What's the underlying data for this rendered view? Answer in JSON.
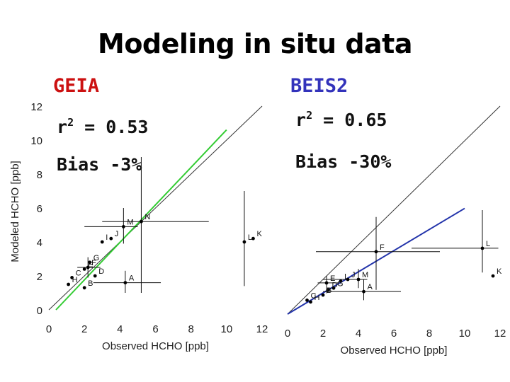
{
  "slide": {
    "title": "Modeling in situ data"
  },
  "chart_data": [
    {
      "type": "scatter",
      "title": "GEIA",
      "title_color": "#cc1111",
      "xlabel": "Observed HCHO [ppb]",
      "ylabel": "Modeled HCHO [ppb]",
      "xlim": [
        0,
        12
      ],
      "ylim": [
        0,
        12
      ],
      "xticks": [
        0,
        2,
        4,
        6,
        8,
        10,
        12
      ],
      "yticks": [
        0,
        2,
        4,
        6,
        8,
        10,
        12
      ],
      "grid": false,
      "r2_prefix": "r",
      "r2_sup": "2",
      "r2_suffix": " = 0.53",
      "bias": "Bias -3%",
      "fit_color": "#33cc33",
      "fit_line": [
        [
          0.4,
          0
        ],
        [
          10,
          10.6
        ]
      ],
      "points": [
        {
          "label": "M",
          "x": 4.2,
          "y": 4.9,
          "xerr": [
            2.0,
            5.0
          ],
          "yerr": [
            3.9,
            6.0
          ]
        },
        {
          "label": "J",
          "x": 3.5,
          "y": 4.2
        },
        {
          "label": "I",
          "x": 3.0,
          "y": 4.0
        },
        {
          "label": "N",
          "x": 5.2,
          "y": 5.2,
          "xerr": [
            3.0,
            9.0
          ],
          "yerr": [
            1.0,
            9.0
          ]
        },
        {
          "label": "L",
          "x": 11.0,
          "y": 4.0,
          "xerr": [
            11.0,
            11.0
          ],
          "yerr": [
            1.4,
            7.0
          ]
        },
        {
          "label": "K",
          "x": 11.5,
          "y": 4.2
        },
        {
          "label": "G",
          "x": 2.3,
          "y": 2.8
        },
        {
          "label": "F",
          "x": 2.2,
          "y": 2.5,
          "xerr": [
            1.6,
            2.9
          ],
          "yerr": [
            1.9,
            3.1
          ]
        },
        {
          "label": "E",
          "x": 2.0,
          "y": 2.4
        },
        {
          "label": "D",
          "x": 2.6,
          "y": 2.0
        },
        {
          "label": "C",
          "x": 1.3,
          "y": 1.9
        },
        {
          "label": "B",
          "x": 2.0,
          "y": 1.3
        },
        {
          "label": "A",
          "x": 4.3,
          "y": 1.6,
          "xerr": [
            2.5,
            6.3
          ],
          "yerr": [
            1.0,
            2.3
          ]
        },
        {
          "label": "H",
          "x": 1.1,
          "y": 1.5
        }
      ]
    },
    {
      "type": "scatter",
      "title": "BEIS2",
      "title_color": "#3333bb",
      "xlabel": "Observed HCHO [ppb]",
      "ylabel": "",
      "xlim": [
        0,
        12
      ],
      "ylim": [
        0,
        12
      ],
      "xticks": [
        0,
        2,
        4,
        6,
        8,
        10,
        12
      ],
      "grid": false,
      "r2_prefix": "r",
      "r2_sup": "2",
      "r2_suffix": " = 0.65",
      "bias": "Bias -30%",
      "fit_color": "#2233aa",
      "fit_line": [
        [
          0,
          0
        ],
        [
          10,
          6.1
        ]
      ],
      "points": [
        {
          "label": "F",
          "x": 5.0,
          "y": 3.6,
          "xerr": [
            1.6,
            8.6
          ],
          "yerr": [
            1.4,
            5.6
          ]
        },
        {
          "label": "L",
          "x": 11.0,
          "y": 3.8,
          "xerr": [
            7.0,
            11.9
          ],
          "yerr": [
            2.4,
            6.0
          ]
        },
        {
          "label": "K",
          "x": 11.6,
          "y": 2.2
        },
        {
          "label": "M",
          "x": 4.0,
          "y": 2.0,
          "xerr": [
            2.0,
            4.5
          ],
          "yerr": [
            1.5,
            2.6
          ]
        },
        {
          "label": "J",
          "x": 3.4,
          "y": 2.0
        },
        {
          "label": "I",
          "x": 3.0,
          "y": 1.9
        },
        {
          "label": "E",
          "x": 2.2,
          "y": 1.8,
          "xerr": [
            1.7,
            2.9
          ],
          "yerr": [
            1.2,
            2.2
          ]
        },
        {
          "label": "G",
          "x": 2.6,
          "y": 1.5
        },
        {
          "label": "D",
          "x": 2.3,
          "y": 1.4
        },
        {
          "label": "A",
          "x": 4.3,
          "y": 1.3,
          "xerr": [
            2.0,
            6.4
          ],
          "yerr": [
            0.8,
            2.0
          ]
        },
        {
          "label": "B",
          "x": 2.0,
          "y": 1.1
        },
        {
          "label": "C",
          "x": 1.1,
          "y": 0.8
        },
        {
          "label": "H",
          "x": 1.3,
          "y": 0.7
        }
      ]
    }
  ]
}
